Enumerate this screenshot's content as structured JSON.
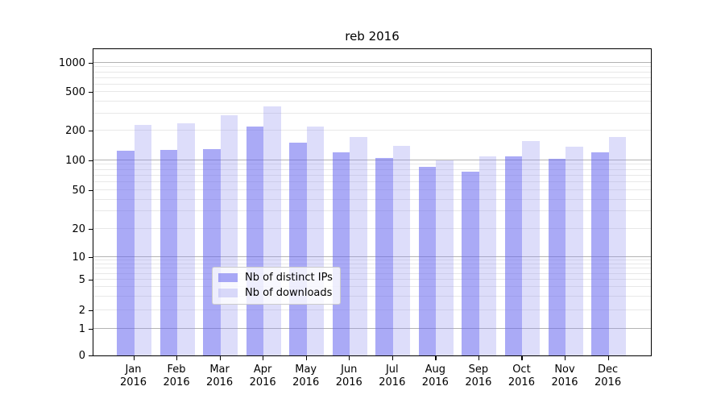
{
  "title": "reb 2016",
  "chart_data": {
    "type": "bar",
    "title": "reb 2016",
    "categories": [
      "Jan 2016",
      "Feb 2016",
      "Mar 2016",
      "Apr 2016",
      "May 2016",
      "Jun 2016",
      "Jul 2016",
      "Aug 2016",
      "Sep 2016",
      "Oct 2016",
      "Nov 2016",
      "Dec 2016"
    ],
    "series": [
      {
        "name": "Nb of distinct IPs",
        "key": "distinct-ips",
        "values": [
          125,
          126,
          129,
          220,
          150,
          120,
          104,
          86,
          76,
          110,
          103,
          119
        ]
      },
      {
        "name": "Nb of downloads",
        "key": "downloads",
        "values": [
          230,
          240,
          290,
          355,
          220,
          173,
          139,
          100,
          110,
          158,
          136,
          174
        ]
      }
    ],
    "xlabel": "",
    "ylabel": "",
    "yscale": "symlog",
    "yticks": [
      0,
      1,
      2,
      5,
      10,
      20,
      50,
      100,
      200,
      500,
      1000
    ],
    "ylim": [
      0,
      1400
    ],
    "grid": true,
    "legend_position": "lower center"
  },
  "axis": {
    "months": [
      "Jan",
      "Feb",
      "Mar",
      "Apr",
      "May",
      "Jun",
      "Jul",
      "Aug",
      "Sep",
      "Oct",
      "Nov",
      "Dec"
    ],
    "year": "2016"
  },
  "legend": {
    "items": [
      {
        "label": "Nb of distinct IPs",
        "color": "rgba(100,100,238,0.55)"
      },
      {
        "label": "Nb of downloads",
        "color": "rgba(150,150,240,0.32)"
      }
    ],
    "background": "rgba(255,255,255,0.8)"
  },
  "colors": {
    "bar_distinct_ips": "rgba(100,100,238,0.55)",
    "bar_downloads": "rgba(150,150,240,0.32)",
    "grid_major": "#b3b3b3",
    "grid_minor": "#e8e8e8",
    "axis_line": "#000000",
    "legend_border": "#cccccc"
  }
}
